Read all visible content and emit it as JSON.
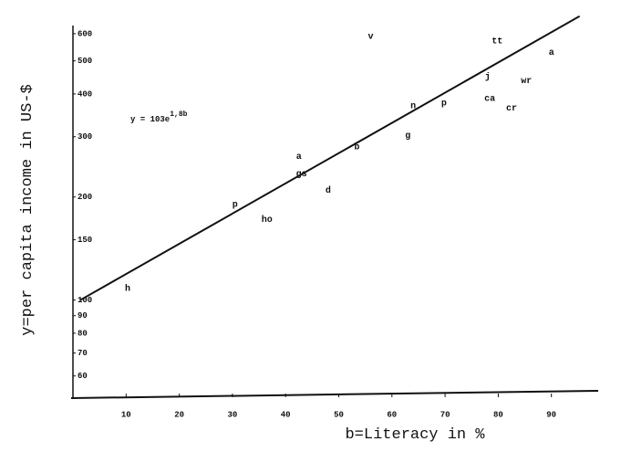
{
  "chart_data": {
    "type": "scatter",
    "x_label": "b=Literacy in %",
    "y_label": "y=per capita income in US-$",
    "annotation": {
      "base": "y = 103e",
      "exponent": "1,8b"
    },
    "xlim": [
      0,
      100
    ],
    "xticks": [
      10,
      20,
      30,
      40,
      50,
      60,
      70,
      80,
      90
    ],
    "ylim": [
      52,
      730
    ],
    "log_y": true,
    "yticks": [
      60,
      70,
      80,
      90,
      100,
      150,
      200,
      300,
      400,
      500,
      600
    ],
    "color": "#111111",
    "labels": [
      "h",
      "p",
      "ho",
      "a",
      "gs",
      "d",
      "b",
      "v",
      "g",
      "n",
      "p",
      "j",
      "ca",
      "tt",
      "cr",
      "wr",
      "a"
    ],
    "x": [
      10.3,
      30.5,
      36.5,
      42.5,
      43,
      48,
      53.4,
      56,
      63,
      64,
      69.8,
      78,
      78.4,
      79.8,
      82.5,
      85.3,
      90
    ],
    "values": [
      108,
      190,
      172,
      263,
      234,
      209,
      280,
      589,
      303,
      369,
      376,
      449,
      388,
      571,
      364,
      438,
      530
    ],
    "trend_line": {
      "x": [
        1.4,
        95.3
      ],
      "y": [
        100,
        675
      ]
    }
  }
}
